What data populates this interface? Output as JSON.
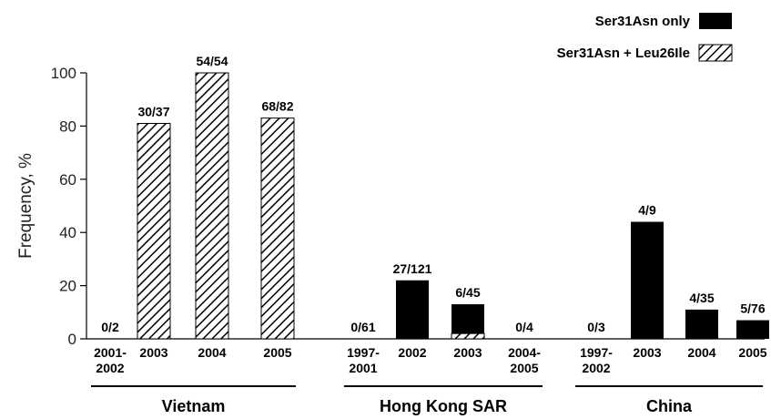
{
  "chart_data": {
    "type": "bar",
    "ylabel": "Frequency, %",
    "ylim": [
      0,
      100
    ],
    "yticks": [
      "0",
      "20",
      "40",
      "60",
      "80",
      "100"
    ],
    "legend": {
      "placement": "top-right",
      "items": [
        {
          "label": "Ser31Asn only",
          "pattern": "solid",
          "color": "#000000"
        },
        {
          "label": "Ser31Asn + Leu26Ile",
          "pattern": "hatched",
          "color": "#000000"
        }
      ]
    },
    "groups": [
      {
        "name": "Vietnam",
        "bars": [
          {
            "category": [
              "2001-",
              "2002"
            ],
            "ser31asn_only": 0,
            "ser31asn_leu26ile": 0,
            "label": "0/2"
          },
          {
            "category": [
              "2003"
            ],
            "ser31asn_only": 0,
            "ser31asn_leu26ile": 81,
            "label": "30/37"
          },
          {
            "category": [
              "2004"
            ],
            "ser31asn_only": 0,
            "ser31asn_leu26ile": 100,
            "label": "54/54"
          },
          {
            "category": [
              "2005"
            ],
            "ser31asn_only": 0,
            "ser31asn_leu26ile": 83,
            "label": "68/82"
          }
        ]
      },
      {
        "name": "Hong Kong SAR",
        "bars": [
          {
            "category": [
              "1997-",
              "2001"
            ],
            "ser31asn_only": 0,
            "ser31asn_leu26ile": 0,
            "label": "0/61"
          },
          {
            "category": [
              "2002"
            ],
            "ser31asn_only": 22,
            "ser31asn_leu26ile": 0,
            "label": "27/121"
          },
          {
            "category": [
              "2003"
            ],
            "ser31asn_only": 11,
            "ser31asn_leu26ile": 2,
            "label": "6/45"
          },
          {
            "category": [
              "2004-",
              "2005"
            ],
            "ser31asn_only": 0,
            "ser31asn_leu26ile": 0,
            "label": "0/4"
          }
        ]
      },
      {
        "name": "China",
        "bars": [
          {
            "category": [
              "1997-",
              "2002"
            ],
            "ser31asn_only": 0,
            "ser31asn_leu26ile": 0,
            "label": "0/3"
          },
          {
            "category": [
              "2003"
            ],
            "ser31asn_only": 44,
            "ser31asn_leu26ile": 0,
            "label": "4/9"
          },
          {
            "category": [
              "2004"
            ],
            "ser31asn_only": 11,
            "ser31asn_leu26ile": 0,
            "label": "4/35"
          },
          {
            "category": [
              "2005"
            ],
            "ser31asn_only": 7,
            "ser31asn_leu26ile": 0,
            "label": "5/76"
          }
        ]
      }
    ]
  }
}
